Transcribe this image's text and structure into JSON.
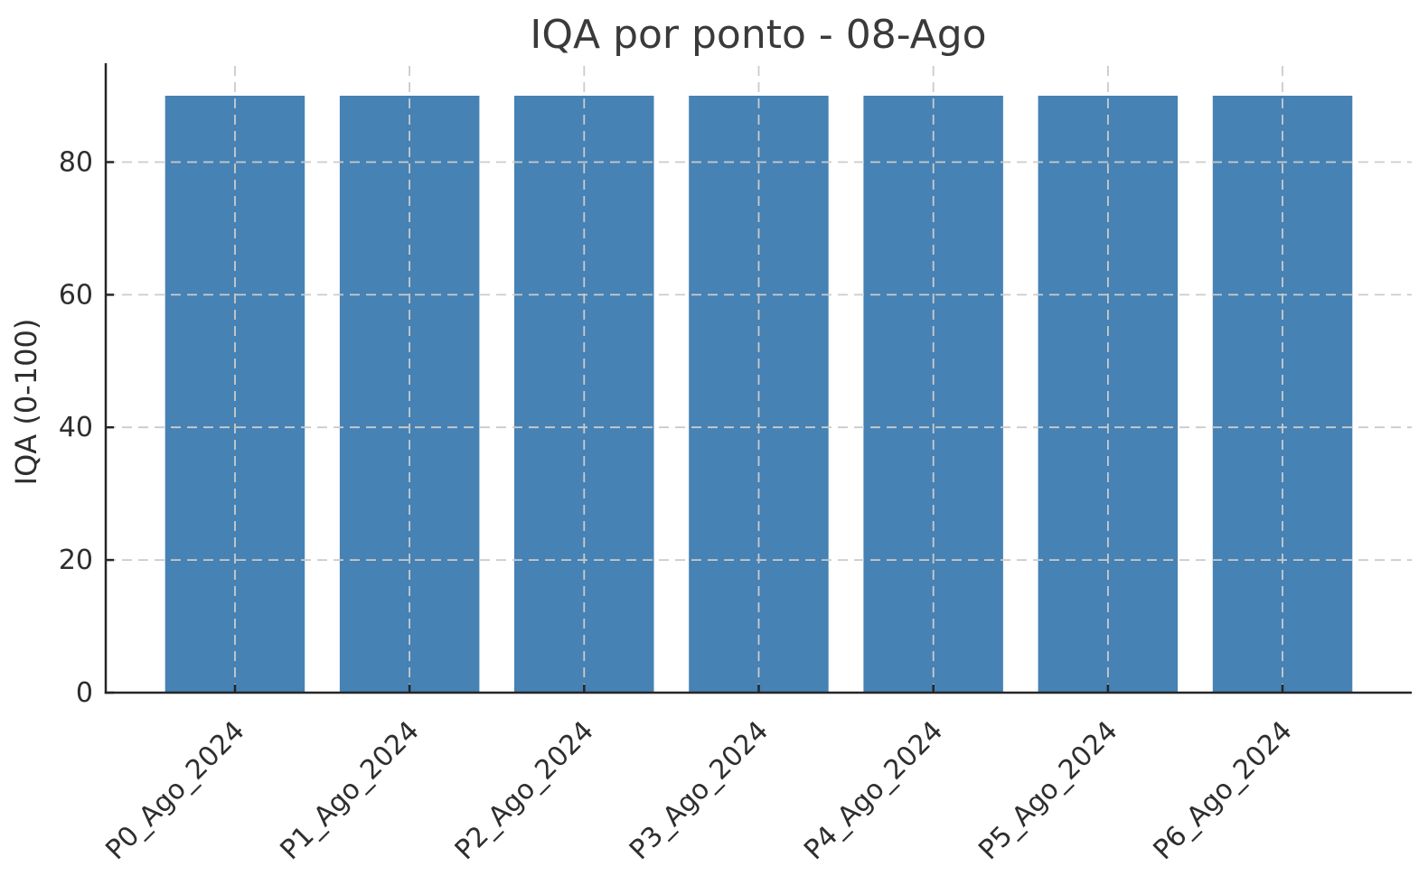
{
  "chart_data": {
    "type": "bar",
    "title": "IQA por ponto - 08-Ago",
    "xlabel": "",
    "ylabel": "IQA (0-100)",
    "categories": [
      "P0_Ago_2024",
      "P1_Ago_2024",
      "P2_Ago_2024",
      "P3_Ago_2024",
      "P4_Ago_2024",
      "P5_Ago_2024",
      "P6_Ago_2024"
    ],
    "values": [
      90,
      90,
      90,
      90,
      90,
      90,
      90
    ],
    "ylim": [
      0,
      94.5
    ],
    "yticks": [
      0,
      20,
      40,
      60,
      80
    ],
    "x_tick_rotation": 45,
    "grid": "on",
    "grid_style": "dashed",
    "legend": "none",
    "colors": {
      "bar": "#4682b4",
      "grid": "#cbcbcb",
      "spine": "#262626",
      "tick_text": "#2e2e2e",
      "title_text": "#3a3a3a"
    }
  }
}
